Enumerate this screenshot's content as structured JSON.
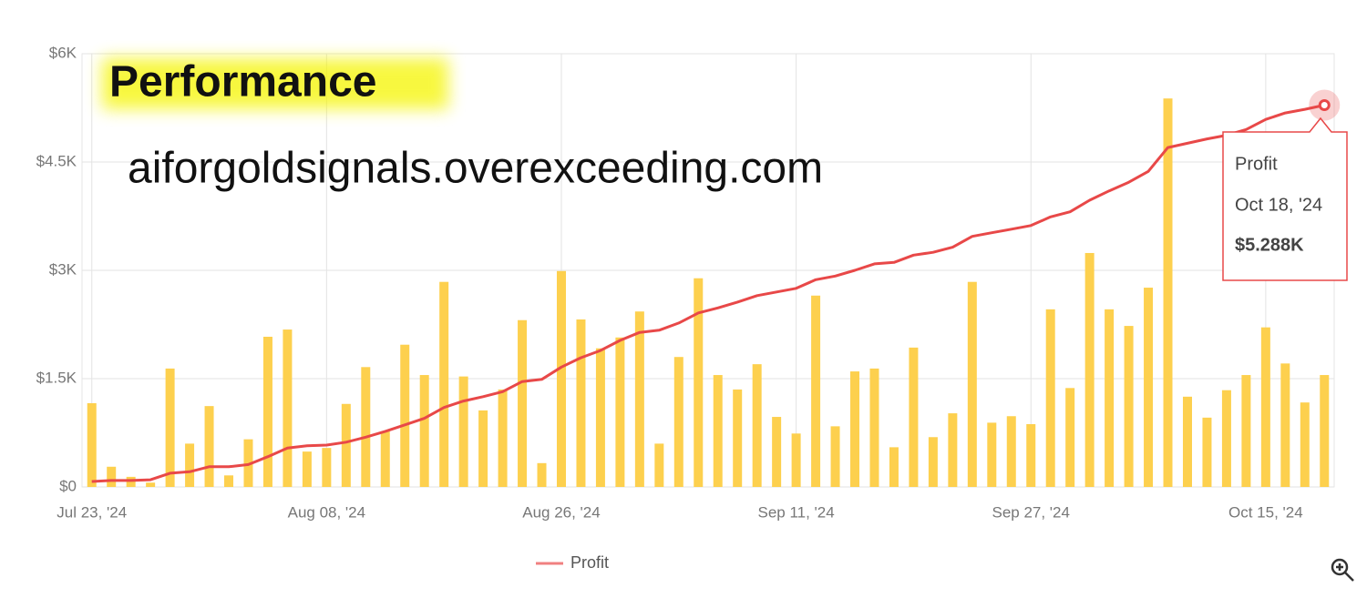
{
  "chart_data": {
    "type": "combo",
    "overlay_title": "Performance",
    "overlay_subtitle": "aiforgoldsignals.overexceeding.com",
    "categories": [
      "Jul 23, '24",
      null,
      null,
      null,
      null,
      null,
      null,
      null,
      null,
      null,
      null,
      null,
      "Aug 08, '24",
      null,
      null,
      null,
      null,
      null,
      null,
      null,
      null,
      null,
      null,
      null,
      "Aug 26, '24",
      null,
      null,
      null,
      null,
      null,
      null,
      null,
      null,
      null,
      null,
      null,
      "Sep 11, '24",
      null,
      null,
      null,
      null,
      null,
      null,
      null,
      null,
      null,
      null,
      null,
      "Sep 27, '24",
      null,
      null,
      null,
      null,
      null,
      null,
      null,
      null,
      null,
      null,
      null,
      "Oct 15, '24",
      null,
      null,
      null
    ],
    "bars": {
      "color": "#fdd04e",
      "values": [
        1160,
        280,
        140,
        60,
        1640,
        600,
        1120,
        160,
        660,
        2080,
        2180,
        490,
        540,
        1150,
        1660,
        770,
        1970,
        1550,
        2840,
        1530,
        1060,
        1350,
        2310,
        330,
        2990,
        2320,
        1920,
        2070,
        2430,
        600,
        1800,
        2890,
        1550,
        1350,
        1700,
        970,
        740,
        2650,
        840,
        1600,
        1640,
        550,
        1930,
        690,
        1020,
        2840,
        890,
        980,
        870,
        2460,
        1370,
        3240,
        2460,
        2230,
        2760,
        5380,
        1250,
        960,
        1340,
        1550,
        2210,
        1710,
        1170,
        1550
      ]
    },
    "series": [
      {
        "name": "Profit",
        "color": "#e84848",
        "values": [
          75,
          90,
          90,
          100,
          190,
          210,
          280,
          280,
          310,
          420,
          540,
          570,
          580,
          620,
          690,
          770,
          860,
          950,
          1100,
          1190,
          1250,
          1320,
          1460,
          1490,
          1660,
          1790,
          1890,
          2030,
          2140,
          2170,
          2270,
          2410,
          2480,
          2560,
          2650,
          2700,
          2750,
          2870,
          2920,
          3000,
          3090,
          3110,
          3210,
          3250,
          3320,
          3470,
          3520,
          3570,
          3620,
          3740,
          3810,
          3970,
          4100,
          4220,
          4370,
          4700,
          4760,
          4820,
          4870,
          4950,
          5090,
          5180,
          5230,
          5288
        ]
      }
    ],
    "ylim": [
      0,
      6000
    ],
    "yticks": [
      {
        "value": 0,
        "label": "$0"
      },
      {
        "value": 1500,
        "label": "$1.5K"
      },
      {
        "value": 3000,
        "label": "$3K"
      },
      {
        "value": 4500,
        "label": "$4.5K"
      },
      {
        "value": 6000,
        "label": "$6K"
      }
    ],
    "grid": true,
    "tooltip": {
      "series": "Profit",
      "date": "Oct 18, '24",
      "value": 5288,
      "value_label": "$5.288K"
    }
  }
}
